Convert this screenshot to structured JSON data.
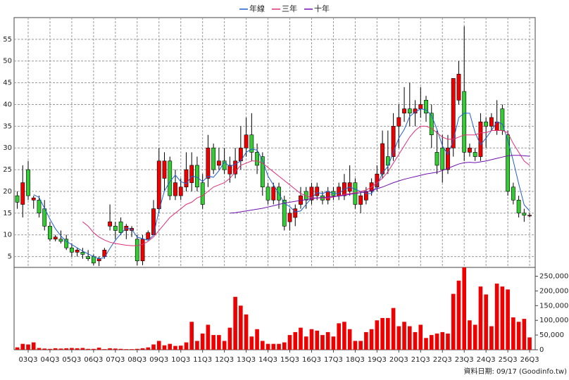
{
  "chart_data": [
    {
      "type": "candlestick",
      "ylim": [
        2.5,
        60
      ],
      "yticks": [
        5,
        10,
        15,
        20,
        25,
        30,
        35,
        40,
        45,
        50,
        55
      ],
      "grid": true,
      "up_color": "#ee0000",
      "down_color": "#33cc33",
      "open": [
        19,
        17,
        25,
        18,
        18,
        16,
        12,
        9,
        9,
        9,
        7,
        6,
        6,
        5,
        5,
        4,
        5,
        12,
        12,
        13,
        11,
        11,
        9,
        4,
        9,
        10,
        16,
        23,
        27,
        19,
        19,
        21,
        22,
        26,
        22,
        23,
        30,
        26,
        27,
        24,
        24,
        27,
        30,
        33,
        29,
        28,
        21,
        18,
        21,
        18,
        13,
        14,
        17,
        20,
        18,
        19,
        19,
        18,
        20,
        19,
        19,
        20,
        22,
        17,
        18,
        20,
        21,
        24,
        28,
        28,
        35,
        38,
        39,
        38,
        39,
        41,
        38,
        29,
        30,
        25,
        30,
        41,
        43,
        29,
        29,
        28,
        36,
        35,
        34,
        39,
        33,
        21,
        18,
        15,
        14.5
      ],
      "high": [
        20,
        26,
        27,
        19,
        19,
        18,
        13,
        10,
        11,
        10,
        8,
        7,
        7,
        6.5,
        5.5,
        5,
        7,
        17,
        13,
        14,
        12.5,
        12,
        10,
        10,
        11,
        18,
        30,
        29,
        28,
        25,
        23,
        29,
        29,
        28,
        24,
        33,
        31,
        30,
        30,
        28,
        30,
        35,
        37,
        38,
        31,
        29,
        22,
        22,
        22,
        19,
        16,
        17,
        21,
        21,
        22,
        22,
        20,
        21,
        21,
        22,
        24,
        26,
        23,
        20,
        21,
        23,
        26,
        34,
        34,
        38,
        40,
        44,
        45,
        41,
        44,
        42,
        40,
        34,
        33,
        33,
        46,
        50,
        58,
        31,
        30,
        38,
        37,
        38,
        41,
        40,
        34,
        22,
        19,
        16,
        15
      ],
      "low": [
        16,
        14,
        18,
        16,
        14,
        11,
        8.5,
        8.5,
        8,
        6.5,
        5,
        5,
        4.5,
        4,
        3,
        2.8,
        4.5,
        11,
        9,
        10,
        9,
        9.5,
        3,
        3,
        9,
        10,
        15,
        20,
        18,
        18,
        18,
        20,
        20,
        20,
        16,
        21,
        24,
        25,
        24,
        22,
        23,
        25,
        28,
        27,
        24,
        19,
        17,
        17,
        16,
        11,
        11,
        12,
        16,
        16,
        17,
        18,
        17,
        17,
        18,
        18,
        18,
        19,
        16,
        15,
        17,
        19,
        20,
        23,
        24,
        27,
        30,
        36,
        35,
        35,
        37,
        36,
        30,
        24,
        22,
        24,
        28,
        40,
        27,
        28,
        27,
        27,
        30,
        34,
        33,
        33,
        19,
        17,
        14,
        13,
        14
      ],
      "close": [
        17.5,
        22,
        19,
        18.5,
        15,
        12,
        9,
        9.5,
        8.5,
        7,
        6,
        6.5,
        5.5,
        4.5,
        3.5,
        4.5,
        6.5,
        13,
        11,
        10.5,
        12,
        11.5,
        4,
        9,
        10.5,
        16,
        27,
        27,
        19,
        22,
        21,
        25,
        26,
        21,
        17,
        30,
        25,
        27,
        25,
        26,
        27,
        30,
        33,
        29,
        26,
        21,
        18,
        21,
        18,
        12,
        15,
        16,
        19,
        18,
        21,
        21,
        18,
        20,
        19,
        21,
        22,
        22,
        17,
        19,
        20,
        22,
        24,
        31,
        26,
        35,
        37,
        39,
        38,
        39,
        40,
        38,
        33,
        26,
        25,
        30,
        46,
        47,
        29,
        30,
        28,
        36,
        35,
        37,
        36,
        34,
        20,
        18,
        15,
        14.5,
        14.5
      ],
      "series": [
        {
          "name": "年線",
          "color": "#2060d0",
          "values": [
            null,
            null,
            null,
            19.25,
            18.6,
            16.1,
            13.6,
            11.4,
            9.75,
            8.5,
            7.75,
            7,
            6.25,
            5.6,
            5,
            4.5,
            4.75,
            6.9,
            8.75,
            10.25,
            11.6,
            11.25,
            9.5,
            9.1,
            8.75,
            9.9,
            15.6,
            20.1,
            22.25,
            23.75,
            22.25,
            21.75,
            23.5,
            23.25,
            22.25,
            23.5,
            23.25,
            24.75,
            26.75,
            25.75,
            26.25,
            27,
            29,
            29.75,
            29.5,
            27.25,
            23.5,
            21.5,
            19.5,
            17.25,
            16.5,
            15.25,
            15.5,
            17,
            18.5,
            19.75,
            19.5,
            20,
            19.5,
            19.5,
            20.5,
            21,
            20.5,
            20,
            19.5,
            19.5,
            21.25,
            24.25,
            25.75,
            29,
            32.25,
            34.25,
            37.25,
            38.25,
            39,
            38.75,
            37.5,
            34.25,
            30.5,
            28.5,
            31.75,
            37,
            38,
            38,
            33.5,
            30.75,
            32.25,
            34,
            36,
            35.5,
            31.75,
            27,
            21.75,
            16.9,
            15.5
          ]
        },
        {
          "name": "三年",
          "color": "#e0307a",
          "values": [
            null,
            null,
            null,
            null,
            null,
            null,
            null,
            null,
            null,
            null,
            null,
            null,
            13,
            12,
            10.5,
            9.5,
            8.8,
            8.3,
            8,
            7.8,
            7.6,
            7.5,
            7.5,
            7.8,
            8.5,
            9.5,
            11,
            12.5,
            14,
            15,
            16,
            17,
            17.5,
            18.5,
            19,
            20,
            21,
            21.5,
            22,
            23,
            24.5,
            26,
            26.5,
            27,
            27,
            26.5,
            25.5,
            24.5,
            23.5,
            22.5,
            21.5,
            20.5,
            19.5,
            19,
            18.5,
            18.5,
            18.5,
            18.5,
            18.7,
            19,
            19.3,
            19.5,
            19.7,
            20,
            20.3,
            21,
            22,
            23,
            24.5,
            26.5,
            28.5,
            30.5,
            32.5,
            34,
            35,
            35,
            34.5,
            33.5,
            32.5,
            32,
            32,
            32.5,
            33,
            33,
            33,
            33.5,
            33.5,
            34,
            34,
            34,
            33.5,
            31,
            29,
            27,
            26
          ]
        },
        {
          "name": "十年",
          "color": "#7010b0",
          "values": [
            null,
            null,
            null,
            null,
            null,
            null,
            null,
            null,
            null,
            null,
            null,
            null,
            null,
            null,
            null,
            null,
            null,
            null,
            null,
            null,
            null,
            null,
            null,
            null,
            null,
            null,
            null,
            null,
            null,
            null,
            null,
            null,
            null,
            null,
            null,
            null,
            null,
            null,
            null,
            15,
            15.1,
            15.3,
            15.5,
            15.7,
            15.9,
            16.1,
            16.4,
            16.7,
            17,
            17.3,
            17.5,
            17.7,
            17.9,
            18.1,
            18.3,
            18.5,
            18.6,
            18.7,
            18.8,
            18.9,
            19.1,
            19.3,
            19.5,
            19.7,
            19.9,
            20.2,
            20.6,
            21,
            21.5,
            22,
            22.4,
            22.8,
            23.1,
            23.4,
            23.7,
            24,
            24.2,
            24.4,
            24.8,
            25.3,
            25.8,
            26.3,
            26.6,
            26.7,
            26.6,
            26.8,
            27,
            27.3,
            27.6,
            27.9,
            28.2,
            28.3,
            28.3,
            28.2,
            28.1
          ]
        }
      ]
    },
    {
      "type": "bar",
      "color": "#ee0000",
      "ylim": [
        0,
        280000
      ],
      "yticks": [
        0,
        {
          "value": 50000,
          "label": "50,000"
        },
        {
          "value": 100000,
          "label": "100,000"
        },
        {
          "value": 150000,
          "label": "150,000"
        },
        {
          "value": 200000,
          "label": "200,000"
        },
        {
          "value": 250000,
          "label": "250,000"
        }
      ],
      "categories": [
        null,
        null,
        "03Q3",
        null,
        null,
        null,
        "04Q3",
        null,
        null,
        null,
        "05Q3",
        null,
        null,
        null,
        "06Q3",
        null,
        null,
        null,
        "07Q3",
        null,
        null,
        null,
        "08Q3",
        null,
        null,
        null,
        "09Q3",
        null,
        null,
        null,
        "10Q3",
        null,
        null,
        null,
        "11Q3",
        null,
        null,
        null,
        "12Q3",
        null,
        null,
        null,
        "13Q3",
        null,
        null,
        null,
        "14Q3",
        null,
        null,
        null,
        "15Q3",
        null,
        null,
        null,
        "16Q3",
        null,
        null,
        null,
        "17Q3",
        null,
        null,
        null,
        "18Q3",
        null,
        null,
        null,
        "19Q3",
        null,
        null,
        null,
        "20Q3",
        null,
        null,
        null,
        "21Q3",
        null,
        null,
        null,
        "22Q3",
        null,
        null,
        null,
        "23Q3",
        null,
        null,
        null,
        "24Q3",
        null,
        null,
        null,
        "25Q3",
        null,
        null,
        null,
        "26Q3"
      ],
      "values": [
        8000,
        20000,
        18000,
        25000,
        6000,
        4000,
        3000,
        5000,
        4000,
        5000,
        6000,
        5000,
        6000,
        3000,
        3000,
        7000,
        2000,
        5000,
        4000,
        3000,
        2000,
        2000,
        3000,
        5000,
        8000,
        18000,
        30000,
        15000,
        20000,
        13000,
        14000,
        25000,
        95000,
        30000,
        55000,
        85000,
        50000,
        50000,
        30000,
        75000,
        180000,
        150000,
        120000,
        45000,
        70000,
        30000,
        20000,
        20000,
        20000,
        25000,
        50000,
        60000,
        75000,
        45000,
        70000,
        65000,
        50000,
        60000,
        45000,
        90000,
        95000,
        70000,
        30000,
        30000,
        60000,
        70000,
        100000,
        108000,
        108000,
        142000,
        80000,
        95000,
        80000,
        60000,
        85000,
        40000,
        50000,
        55000,
        60000,
        55000,
        190000,
        235000,
        280000,
        100000,
        85000,
        215000,
        188000,
        80000,
        225000,
        215000,
        205000,
        110000,
        95000,
        105000,
        42000
      ],
      "source": "資料日期: 09/17 (Goodinfo.tw)"
    }
  ]
}
